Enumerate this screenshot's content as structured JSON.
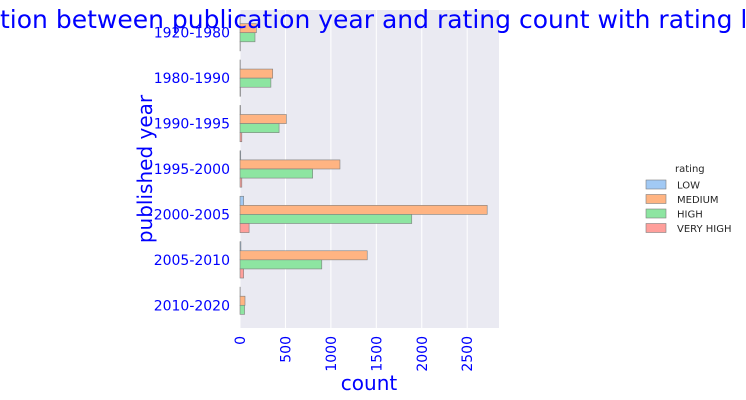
{
  "colors": {
    "label": "#0000ff",
    "plot_bg": "#eaeaf2",
    "grid": "#ffffff",
    "bar_edge": "#7f7f7f",
    "legend_text": "#262626"
  },
  "chart_data": {
    "type": "bar",
    "orientation": "horizontal",
    "title": "ralation between publication year and rating count with rating level",
    "xlabel": "count",
    "ylabel": "published year",
    "xlim": [
      0,
      2850
    ],
    "xticks": [
      0,
      500,
      1000,
      1500,
      2000,
      2500
    ],
    "xtick_labels": [
      "0",
      "500",
      "1000",
      "1500",
      "2000",
      "2500"
    ],
    "categories": [
      "1920-1980",
      "1980-1990",
      "1990-1995",
      "1995-2000",
      "2000-2005",
      "2005-2010",
      "2010-2020"
    ],
    "grid": true,
    "legend": {
      "title": "rating",
      "placement": "right"
    },
    "series": [
      {
        "name": "LOW",
        "color": "#a1c9f4",
        "values": [
          2,
          3,
          5,
          8,
          40,
          10,
          2
        ]
      },
      {
        "name": "MEDIUM",
        "color": "#ffb482",
        "values": [
          180,
          360,
          510,
          1100,
          2720,
          1400,
          55
        ]
      },
      {
        "name": "HIGH",
        "color": "#8de5a1",
        "values": [
          165,
          340,
          430,
          800,
          1890,
          900,
          50
        ]
      },
      {
        "name": "VERY HIGH",
        "color": "#ff9f9b",
        "values": [
          3,
          5,
          20,
          20,
          100,
          40,
          0
        ]
      }
    ]
  }
}
